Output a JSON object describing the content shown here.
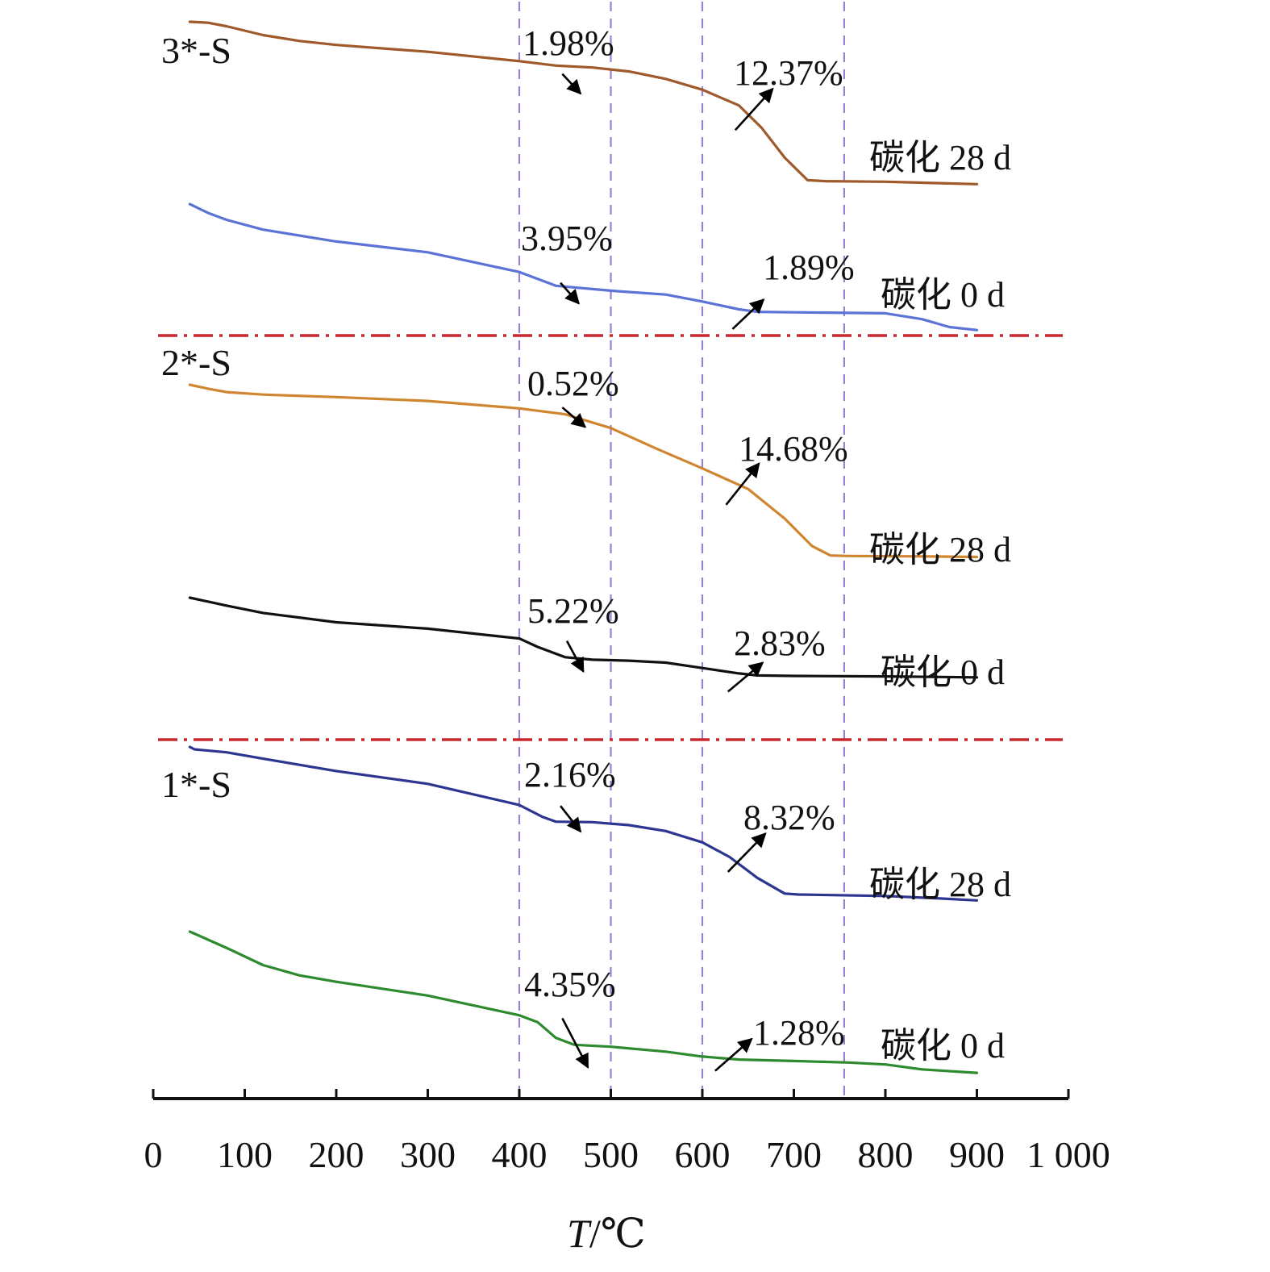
{
  "chart_data": {
    "type": "line",
    "xlabel": "T/℃",
    "xlim": [
      0,
      1000
    ],
    "xticks": [
      0,
      100,
      200,
      300,
      400,
      500,
      600,
      700,
      800,
      900,
      1000
    ],
    "xtick_labels": [
      "0",
      "100",
      "200",
      "300",
      "400",
      "500",
      "600",
      "700",
      "800",
      "900",
      "1 000"
    ],
    "reference_lines_x": [
      400,
      500,
      600,
      755
    ],
    "colors": {
      "axis": "#111111",
      "vline": "#9b7fd6",
      "hsep": "#c8282d",
      "arrow": "#000000"
    },
    "panels": [
      {
        "label": "3*-S",
        "series": [
          {
            "name": "碳化 28 d",
            "color": "#a0592a",
            "x": [
              40,
              60,
              80,
              120,
              160,
              200,
              300,
              400,
              440,
              480,
              520,
              560,
              600,
              640,
              665,
              690,
              715,
              735,
              800,
              860,
              900
            ],
            "y": [
              100,
              99.9,
              99.55,
              98.65,
              98.05,
              97.65,
              96.95,
              96.0,
              95.55,
              95.35,
              94.95,
              94.2,
              93.1,
              91.5,
              89.2,
              86.2,
              83.9,
              83.8,
              83.75,
              83.6,
              83.5
            ],
            "annotations": [
              {
                "text": "1.98%",
                "arrow_from": [
                  447,
                  94.7
                ],
                "arrow_to": [
                  467,
                  92.7
                ]
              },
              {
                "text": "12.37%",
                "arrow_from": [
                  636,
                  89.0
                ],
                "arrow_to": [
                  677,
                  93.2
                ]
              }
            ]
          },
          {
            "name": "碳化 0 d",
            "color": "#5b73d6",
            "x": [
              40,
              60,
              80,
              120,
              200,
              300,
              400,
              440,
              500,
              560,
              600,
              640,
              660,
              700,
              800,
              840,
              870,
              900
            ],
            "y": [
              100,
              99.1,
              98.4,
              97.4,
              96.2,
              95.1,
              93.1,
              91.7,
              91.2,
              90.8,
              90.1,
              89.3,
              89.05,
              89.0,
              88.9,
              88.3,
              87.5,
              87.2
            ],
            "annotations": [
              {
                "text": "3.95%",
                "arrow_from": [
                  445,
                  92.0
                ],
                "arrow_to": [
                  465,
                  89.9
                ]
              },
              {
                "text": "1.89%",
                "arrow_from": [
                  633,
                  87.3
                ],
                "arrow_to": [
                  667,
                  90.3
                ]
              }
            ]
          }
        ]
      },
      {
        "label": "2*-S",
        "series": [
          {
            "name": "碳化 28 d",
            "color": "#d08630",
            "x": [
              40,
              60,
              80,
              120,
              200,
              300,
              400,
              450,
              500,
              550,
              600,
              650,
              690,
              720,
              740,
              760,
              850,
              900
            ],
            "y": [
              100,
              99.6,
              99.25,
              99.0,
              98.75,
              98.35,
              97.6,
              97.0,
              95.6,
              93.5,
              91.5,
              89.4,
              86.4,
              83.6,
              82.65,
              82.6,
              82.55,
              82.5
            ],
            "annotations": [
              {
                "text": "0.52%",
                "arrow_from": [
                  447,
                  97.7
                ],
                "arrow_to": [
                  472,
                  95.7
                ]
              },
              {
                "text": "14.68%",
                "arrow_from": [
                  626,
                  87.8
                ],
                "arrow_to": [
                  662,
                  92.0
                ]
              }
            ]
          },
          {
            "name": "碳化 0 d",
            "color": "#111111",
            "x": [
              40,
              80,
              120,
              200,
              300,
              400,
              420,
              450,
              480,
              520,
              560,
              600,
              640,
              660,
              700,
              800,
              850,
              900
            ],
            "y": [
              100,
              99.2,
              98.45,
              97.5,
              96.85,
              95.85,
              95.0,
              93.95,
              93.7,
              93.6,
              93.4,
              92.85,
              92.3,
              92.1,
              92.05,
              92.0,
              91.95,
              91.9
            ],
            "annotations": [
              {
                "text": "5.22%",
                "arrow_from": [
                  452,
                  95.6
                ],
                "arrow_to": [
                  470,
                  92.5
                ]
              },
              {
                "text": "2.83%",
                "arrow_from": [
                  628,
                  90.45
                ],
                "arrow_to": [
                  666,
                  93.4
                ]
              }
            ]
          }
        ]
      },
      {
        "label": "1*-S",
        "series": [
          {
            "name": "碳化 28 d",
            "color": "#2c3590",
            "x": [
              40,
              45,
              80,
              120,
              200,
              300,
              400,
              425,
              440,
              480,
              520,
              560,
              600,
              630,
              660,
              690,
              705,
              800,
              860,
              900
            ],
            "y": [
              100,
              99.75,
              99.45,
              98.8,
              97.55,
              96.25,
              94.1,
              92.9,
              92.4,
              92.35,
              92.05,
              91.45,
              90.3,
              88.8,
              86.7,
              85.1,
              85.0,
              84.85,
              84.6,
              84.4
            ],
            "annotations": [
              {
                "text": "2.16%",
                "arrow_from": [
                  445,
                  94.0
                ],
                "arrow_to": [
                  467,
                  91.4
                ]
              },
              {
                "text": "8.32%",
                "arrow_from": [
                  628,
                  87.3
                ],
                "arrow_to": [
                  669,
                  91.2
                ]
              }
            ]
          },
          {
            "name": "碳化 0 d",
            "color": "#2e8a2e",
            "x": [
              40,
              80,
              120,
              160,
              200,
              300,
              400,
              420,
              440,
              460,
              500,
              560,
              600,
              640,
              700,
              760,
              800,
              840,
              900
            ],
            "y": [
              100,
              98.35,
              96.6,
              95.55,
              94.9,
              93.5,
              91.5,
              90.8,
              89.2,
              88.5,
              88.3,
              87.8,
              87.3,
              87.0,
              86.85,
              86.7,
              86.5,
              86.0,
              85.65
            ],
            "annotations": [
              {
                "text": "4.35%",
                "arrow_from": [
                  447,
                  91.2
                ],
                "arrow_to": [
                  475,
                  86.2
                ]
              },
              {
                "text": "1.28%",
                "arrow_from": [
                  614,
                  85.85
                ],
                "arrow_to": [
                  654,
                  89.1
                ]
              }
            ]
          }
        ]
      }
    ]
  }
}
